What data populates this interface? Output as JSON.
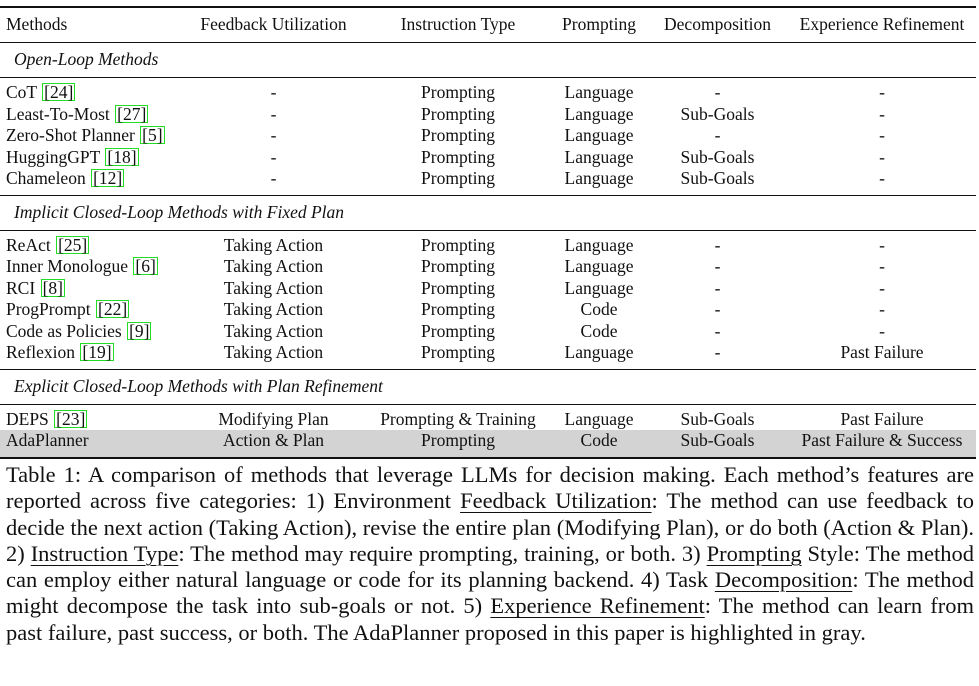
{
  "table": {
    "headers": [
      "Methods",
      "Feedback Utilization",
      "Instruction Type",
      "Prompting",
      "Decomposition",
      "Experience Refinement"
    ],
    "groups": [
      {
        "title": "Open-Loop Methods",
        "rows": [
          {
            "method": "CoT",
            "ref": "24",
            "feedback": "-",
            "instruction": "Prompting",
            "prompting": "Language",
            "decomposition": "-",
            "refinement": "-"
          },
          {
            "method": "Least-To-Most",
            "ref": "27",
            "feedback": "-",
            "instruction": "Prompting",
            "prompting": "Language",
            "decomposition": "Sub-Goals",
            "refinement": "-"
          },
          {
            "method": "Zero-Shot Planner",
            "ref": "5",
            "feedback": "-",
            "instruction": "Prompting",
            "prompting": "Language",
            "decomposition": "-",
            "refinement": "-"
          },
          {
            "method": "HuggingGPT",
            "ref": "18",
            "feedback": "-",
            "instruction": "Prompting",
            "prompting": "Language",
            "decomposition": "Sub-Goals",
            "refinement": "-"
          },
          {
            "method": "Chameleon",
            "ref": "12",
            "feedback": "-",
            "instruction": "Prompting",
            "prompting": "Language",
            "decomposition": "Sub-Goals",
            "refinement": "-"
          }
        ]
      },
      {
        "title": "Implicit Closed-Loop Methods with Fixed Plan",
        "rows": [
          {
            "method": "ReAct",
            "ref": "25",
            "feedback": "Taking Action",
            "instruction": "Prompting",
            "prompting": "Language",
            "decomposition": "-",
            "refinement": "-"
          },
          {
            "method": "Inner Monologue",
            "ref": "6",
            "feedback": "Taking Action",
            "instruction": "Prompting",
            "prompting": "Language",
            "decomposition": "-",
            "refinement": "-"
          },
          {
            "method": "RCI",
            "ref": "8",
            "feedback": "Taking Action",
            "instruction": "Prompting",
            "prompting": "Language",
            "decomposition": "-",
            "refinement": "-"
          },
          {
            "method": "ProgPrompt",
            "ref": "22",
            "feedback": "Taking Action",
            "instruction": "Prompting",
            "prompting": "Code",
            "decomposition": "-",
            "refinement": "-"
          },
          {
            "method": "Code as Policies",
            "ref": "9",
            "feedback": "Taking Action",
            "instruction": "Prompting",
            "prompting": "Code",
            "decomposition": "-",
            "refinement": "-"
          },
          {
            "method": "Reflexion",
            "ref": "19",
            "feedback": "Taking Action",
            "instruction": "Prompting",
            "prompting": "Language",
            "decomposition": "-",
            "refinement": "Past Failure"
          }
        ]
      },
      {
        "title": "Explicit Closed-Loop Methods with Plan Refinement",
        "rows": [
          {
            "method": "DEPS",
            "ref": "23",
            "feedback": "Modifying Plan",
            "instruction": "Prompting & Training",
            "prompting": "Language",
            "decomposition": "Sub-Goals",
            "refinement": "Past Failure"
          },
          {
            "method": "AdaPlanner",
            "ref": "",
            "feedback": "Action & Plan",
            "instruction": "Prompting",
            "prompting": "Code",
            "decomposition": "Sub-Goals",
            "refinement": "Past Failure & Success",
            "highlight": true
          }
        ]
      }
    ]
  },
  "caption": {
    "p1": "Table 1: A comparison of methods that leverage LLMs for decision making. Each method’s features are reported across five categories: 1) Environment ",
    "u1": "Feedback Utilization",
    "p2": ": The method can use feedback to decide the next action (Taking Action), revise the entire plan (Modifying Plan), or do both (Action & Plan). 2) ",
    "u2": "Instruction Type",
    "p3": ": The method may require prompting, training, or both. 3) ",
    "u3": "Prompting",
    "p4": " Style: The method can employ either natural language or code for its planning backend. 4) Task ",
    "u4": "Decomposition",
    "p5": ": The method might decompose the task into sub-goals or not. 5) ",
    "u5": "Experience Refinement",
    "p6": ": The method can learn from past failure, past success, or both. The AdaPlanner proposed in this paper is highlighted in gray."
  },
  "colors": {
    "highlight_row": "#d3d3d3",
    "citation_box": "#22dd22",
    "text": "#111111"
  }
}
